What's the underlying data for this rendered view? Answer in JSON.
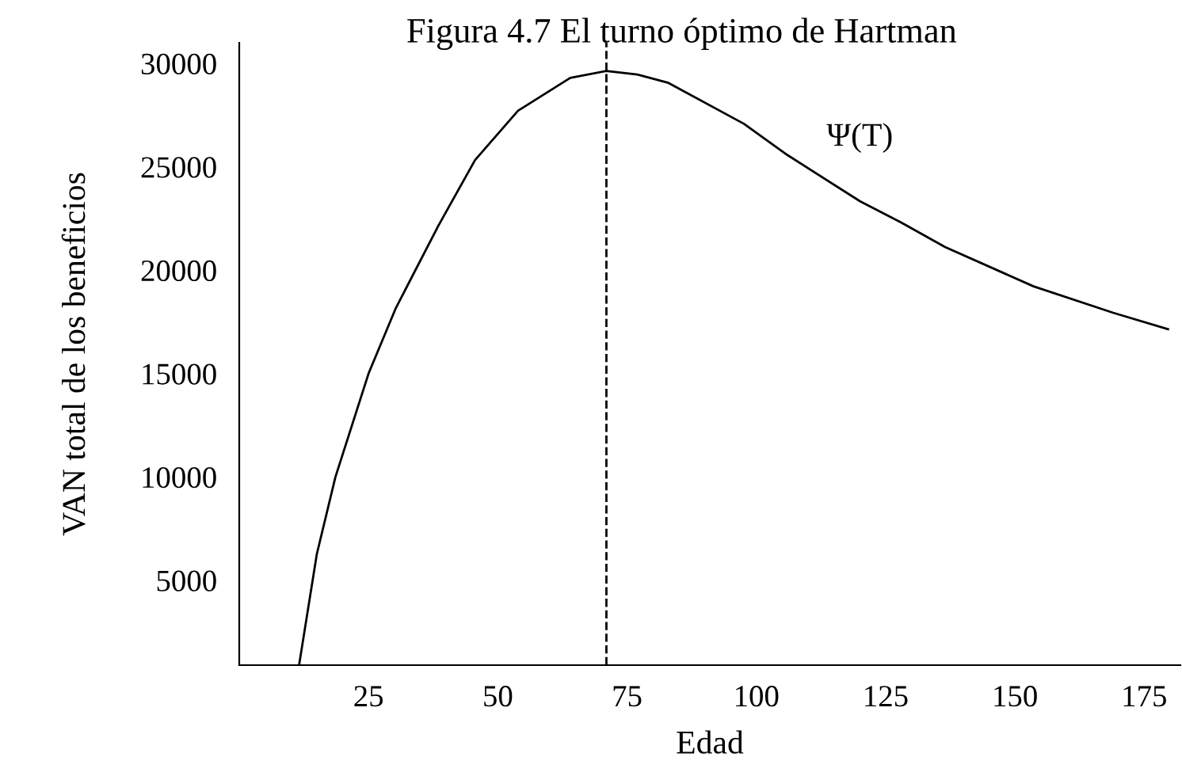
{
  "chart_data": {
    "type": "line",
    "title": "Figura 4.7 El turno óptimo de Hartman",
    "xlabel": "Edad",
    "ylabel": "VAN total de los beneficios",
    "x": [
      11.6,
      15,
      18.6,
      25,
      30.3,
      38.5,
      45.6,
      53.9,
      64,
      71,
      77,
      83,
      97.6,
      106,
      120,
      128,
      136.5,
      153.6,
      169,
      179.6
    ],
    "series": [
      {
        "name": "Ψ(T)",
        "color": "#000000",
        "values": [
          950,
          6270,
          10000,
          15000,
          18180,
          22150,
          25330,
          27710,
          29300,
          29640,
          29460,
          29060,
          27080,
          25570,
          23340,
          22310,
          21120,
          19220,
          17940,
          17150
        ]
      }
    ],
    "ref_lines": [
      {
        "axis": "x",
        "value": 71,
        "line_style": "dashed",
        "color": "#000000"
      }
    ],
    "xlim": [
      0,
      182
    ],
    "ylim": [
      900,
      31000
    ],
    "xticks": [
      25,
      50,
      75,
      100,
      125,
      150,
      175
    ],
    "yticks": [
      5000,
      10000,
      15000,
      20000,
      25000,
      30000
    ],
    "grid": false,
    "legend": false,
    "marker": "none",
    "line_style": "solid"
  }
}
